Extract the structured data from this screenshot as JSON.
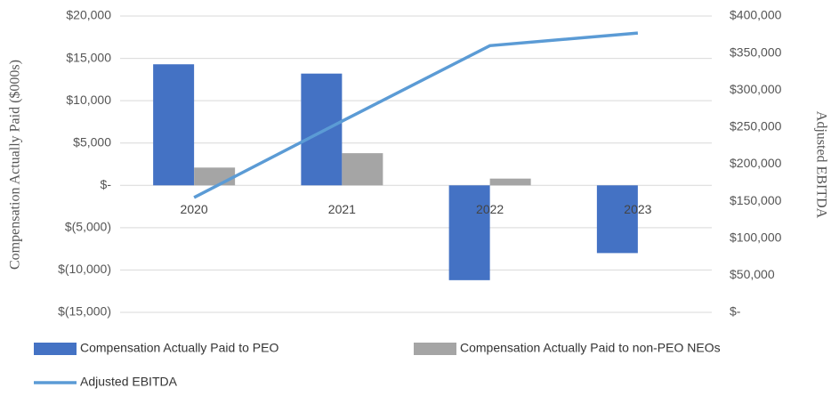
{
  "chart_data": {
    "type": "bar_line",
    "categories": [
      "2020",
      "2021",
      "2022",
      "2023"
    ],
    "series": [
      {
        "name": "Compensation Actually Paid to PEO",
        "color": "#4472c4",
        "type": "bar",
        "values": [
          14300,
          13200,
          -11200,
          -8000
        ]
      },
      {
        "name": "Compensation Actually Paid to non-PEO NEOs",
        "color": "#a5a5a5",
        "type": "bar",
        "values": [
          2100,
          3800,
          800,
          null
        ]
      },
      {
        "name": "Adjusted EBITDA",
        "color": "#5b9bd5",
        "type": "line",
        "axis": "y2",
        "values": [
          155000,
          258000,
          360000,
          377000
        ]
      }
    ],
    "ylabel": "Compensation Actually Paid ($000s)",
    "y2label": "Adjusted EBITDA",
    "ylim": [
      -15000,
      20000
    ],
    "yticks": [
      {
        "value": -15000,
        "label": "$(15,000)"
      },
      {
        "value": -10000,
        "label": "$(10,000)"
      },
      {
        "value": -5000,
        "label": "$(5,000)"
      },
      {
        "value": 0,
        "label": "$-"
      },
      {
        "value": 5000,
        "label": "$5,000"
      },
      {
        "value": 10000,
        "label": "$10,000"
      },
      {
        "value": 15000,
        "label": "$15,000"
      },
      {
        "value": 20000,
        "label": "$20,000"
      }
    ],
    "y2lim": [
      0,
      400000
    ],
    "y2ticks": [
      {
        "value": 0,
        "label": "$-"
      },
      {
        "value": 50000,
        "label": "$50,000"
      },
      {
        "value": 100000,
        "label": "$100,000"
      },
      {
        "value": 150000,
        "label": "$150,000"
      },
      {
        "value": 200000,
        "label": "$200,000"
      },
      {
        "value": 250000,
        "label": "$250,000"
      },
      {
        "value": 300000,
        "label": "$300,000"
      },
      {
        "value": 350000,
        "label": "$350,000"
      },
      {
        "value": 400000,
        "label": "$400,000"
      }
    ],
    "grid": true
  }
}
